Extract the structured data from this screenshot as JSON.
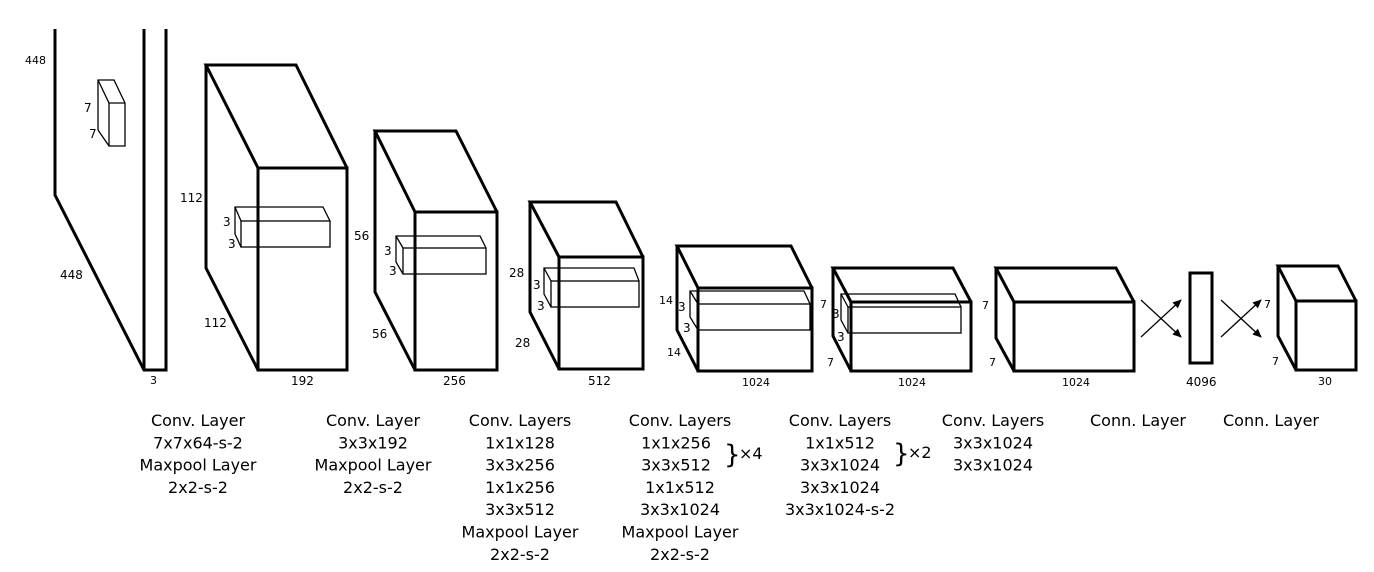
{
  "input": {
    "height": "448",
    "width": "448",
    "channels": "3",
    "kernel_h": "7",
    "kernel_w": "7"
  },
  "block1": {
    "h_left": "112",
    "h_bottom": "112",
    "channels": "192",
    "k1": "3",
    "k2": "3"
  },
  "block2": {
    "h_left": "56",
    "h_bottom": "56",
    "channels": "256",
    "k1": "3",
    "k2": "3"
  },
  "block3": {
    "h_left": "28",
    "h_bottom": "28",
    "channels": "512",
    "k1": "3",
    "k2": "3"
  },
  "block4": {
    "h_left": "14",
    "h_bottom": "14",
    "channels": "1024",
    "k1": "3",
    "k2": "3"
  },
  "block5": {
    "h_left": "7",
    "h_bottom": "7",
    "channels": "1024",
    "k1": "3",
    "k2": "3"
  },
  "block6": {
    "h_left": "7",
    "h_bottom": "7",
    "channels": "1024"
  },
  "fc": {
    "units": "4096"
  },
  "output": {
    "h_left": "7",
    "h_bottom": "7",
    "channels": "30"
  },
  "captions": [
    [
      "Conv. Layer",
      "7x7x64-s-2",
      "Maxpool Layer",
      "2x2-s-2"
    ],
    [
      "Conv. Layer",
      "3x3x192",
      "Maxpool Layer",
      "2x2-s-2"
    ],
    [
      "Conv. Layers",
      "1x1x128",
      "3x3x256",
      "1x1x256",
      "3x3x512",
      "Maxpool Layer",
      "2x2-s-2"
    ],
    [
      "Conv. Layers",
      "1x1x256",
      "3x3x512",
      "1x1x512",
      "3x3x1024",
      "Maxpool Layer",
      "2x2-s-2"
    ],
    [
      "Conv. Layers",
      "1x1x512",
      "3x3x1024",
      "3x3x1024",
      "3x3x1024-s-2"
    ],
    [
      "Conv. Layers",
      "3x3x1024",
      "3x3x1024"
    ],
    [
      "Conn. Layer"
    ],
    [
      "Conn. Layer"
    ]
  ],
  "repeat": {
    "group4": "×4",
    "group5": "×2",
    "brace": "}"
  }
}
